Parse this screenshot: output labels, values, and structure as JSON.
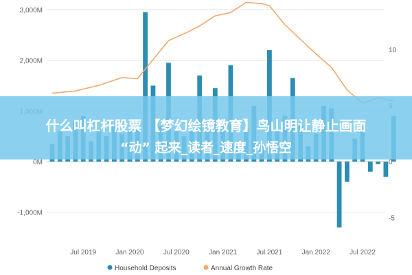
{
  "colors": {
    "bars": "#2b8cb4",
    "line": "#f5a86b",
    "grid": "#e3e3e3",
    "banner": "#78c8ec",
    "banner_text": "#ffffff"
  },
  "banner": {
    "line1": "什么叫杠杆股票 【梦幻绘镜教育】鸟山明让静止画面",
    "line2": "“动” 起来_读者_速度_孙悟空"
  },
  "chart_data": {
    "type": "bar",
    "grid": true,
    "legend_position": "bottom",
    "legend": [
      "Household Deposits",
      "Annual Growth Rate"
    ],
    "x_ticks": [
      "Jul 2019",
      "Jan 2020",
      "Jul 2020",
      "Jan 2021",
      "Jul 2021",
      "Jan 2022",
      "Jul 2022"
    ],
    "y_left": {
      "ticks": [
        "3,000M",
        "2,000M",
        "1,000M",
        "0M",
        "-1,000M"
      ],
      "values": [
        3000,
        2000,
        1000,
        0,
        -1000
      ],
      "ylim": [
        -1200,
        3100
      ]
    },
    "y_right": {
      "ticks": [
        "10",
        "5",
        "0",
        "-5"
      ],
      "values": [
        10,
        5,
        0,
        -5
      ],
      "ylim": [
        -6.5,
        14.5
      ]
    },
    "x_range": [
      "2019-03",
      "2022-11"
    ],
    "series": [
      {
        "name": "Household Deposits",
        "type": "bar",
        "axis": "left",
        "x": [
          "2019-03",
          "2019-04",
          "2019-05",
          "2019-06",
          "2019-07",
          "2019-08",
          "2019-09",
          "2019-10",
          "2019-11",
          "2019-12",
          "2020-01",
          "2020-02",
          "2020-03",
          "2020-04",
          "2020-05",
          "2020-06",
          "2020-07",
          "2020-08",
          "2020-09",
          "2020-10",
          "2020-11",
          "2020-12",
          "2021-01",
          "2021-02",
          "2021-03",
          "2021-04",
          "2021-05",
          "2021-06",
          "2021-07",
          "2021-08",
          "2021-09",
          "2021-10",
          "2021-11",
          "2021-12",
          "2022-01",
          "2022-02",
          "2022-03",
          "2022-04",
          "2022-05",
          "2022-06",
          "2022-07",
          "2022-08",
          "2022-09",
          "2022-10",
          "2022-11"
        ],
        "values": [
          350,
          600,
          500,
          800,
          900,
          400,
          650,
          500,
          700,
          550,
          600,
          750,
          2950,
          1500,
          700,
          1950,
          600,
          500,
          600,
          1700,
          800,
          1450,
          700,
          1900,
          400,
          650,
          1100,
          350,
          2200,
          600,
          900,
          1650,
          700,
          300,
          550,
          1100,
          1050,
          -1300,
          -400,
          450,
          700,
          -200,
          -50,
          -300,
          900
        ]
      },
      {
        "name": "Annual Growth Rate",
        "type": "line",
        "axis": "right",
        "x": [
          "2019-03",
          "2019-06",
          "2019-09",
          "2019-12",
          "2020-02",
          "2020-04",
          "2020-06",
          "2020-08",
          "2020-10",
          "2020-12",
          "2021-02",
          "2021-04",
          "2021-06",
          "2021-07",
          "2021-09",
          "2021-11",
          "2022-01",
          "2022-03",
          "2022-05",
          "2022-07",
          "2022-09",
          "2022-11"
        ],
        "values": [
          6.1,
          6.3,
          6.8,
          7.5,
          7.4,
          9.1,
          10.8,
          11.4,
          12.1,
          13.0,
          13.3,
          14.2,
          14.1,
          13.9,
          12.2,
          10.9,
          9.6,
          8.4,
          6.4,
          5.2,
          5.7,
          5.4
        ]
      }
    ]
  }
}
